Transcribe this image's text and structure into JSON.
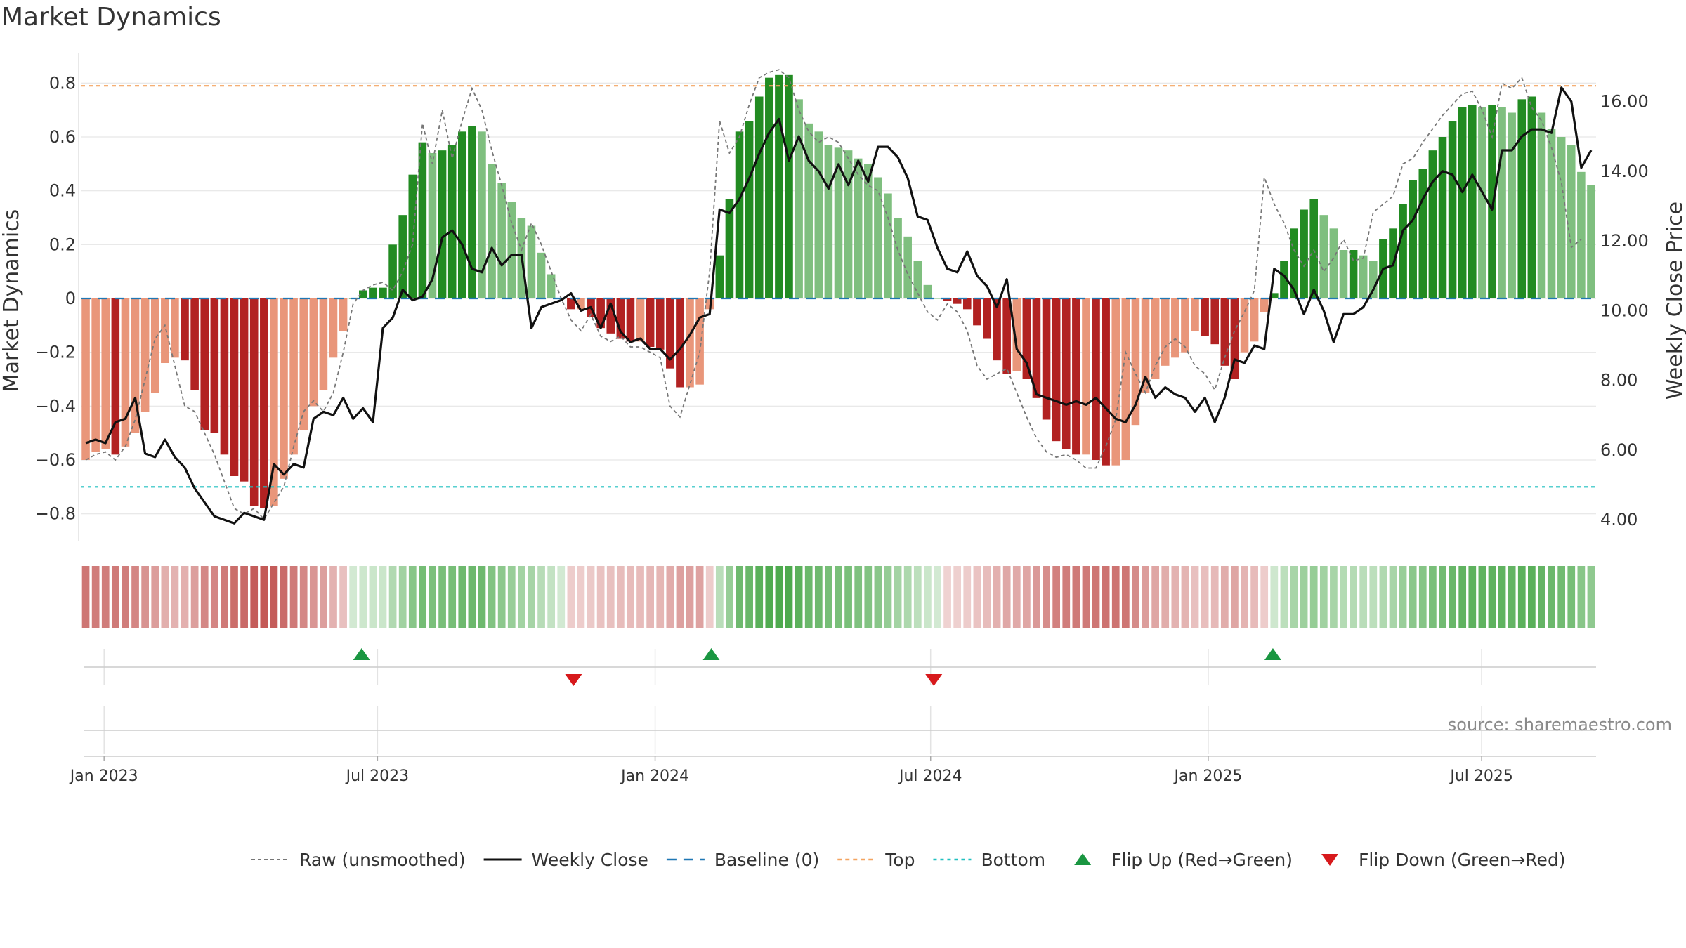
{
  "chart_data": {
    "type": "bar",
    "title": "Market Dynamics",
    "ylabel_left": "Market Dynamics",
    "ylabel_right": "Weekly Close Price",
    "source": "source: sharemaestro.com",
    "ylim_left": [
      -0.9,
      0.9
    ],
    "ylim_right": [
      3.4,
      17.3
    ],
    "yticks_left": [
      "−0.8",
      "−0.6",
      "−0.4",
      "−0.2",
      "0",
      "0.2",
      "0.4",
      "0.6",
      "0.8"
    ],
    "yticks_right": [
      "4.00",
      "6.00",
      "8.00",
      "10.00",
      "12.00",
      "14.00",
      "16.00"
    ],
    "x_ticks": [
      {
        "label": "Jan 2023",
        "week": 2.2
      },
      {
        "label": "Jul 2023",
        "week": 28.0
      },
      {
        "label": "Jan 2024",
        "week": 54.2
      },
      {
        "label": "Jul 2024",
        "week": 80.2
      },
      {
        "label": "Jan 2025",
        "week": 106.4
      },
      {
        "label": "Jul 2025",
        "week": 132.2
      }
    ],
    "x_range_weeks": [
      0,
      143
    ],
    "start_date": "2022-12-18",
    "top_level": 0.79,
    "bottom_level": -0.7,
    "baseline": 0,
    "grid": true,
    "legend_position": "bottom-center",
    "colors": {
      "strong_green": "#228b22",
      "light_green": "#7fbf7f",
      "strong_red": "#b22222",
      "light_red": "#e9967a",
      "weekly_close": "#111111",
      "raw": "#777777",
      "baseline": "#1f77b4",
      "top": "#f4a460",
      "bottom": "#20c0c0",
      "flip_up": "#1a9641",
      "flip_down": "#d7191c"
    },
    "series": [
      {
        "name": "Market Dynamics",
        "type": "bar",
        "values": [
          -0.6,
          -0.57,
          -0.56,
          -0.58,
          -0.55,
          -0.5,
          -0.42,
          -0.35,
          -0.24,
          -0.22,
          -0.23,
          -0.34,
          -0.49,
          -0.5,
          -0.58,
          -0.66,
          -0.68,
          -0.77,
          -0.78,
          -0.77,
          -0.67,
          -0.58,
          -0.49,
          -0.4,
          -0.34,
          -0.22,
          -0.12,
          0,
          0.03,
          0.04,
          0.04,
          0.2,
          0.31,
          0.46,
          0.58,
          0.54,
          0.55,
          0.57,
          0.62,
          0.64,
          0.62,
          0.5,
          0.43,
          0.36,
          0.3,
          0.27,
          0.17,
          0.09,
          0.0,
          -0.04,
          -0.04,
          -0.07,
          -0.11,
          -0.13,
          -0.15,
          -0.16,
          -0.16,
          -0.18,
          -0.19,
          -0.26,
          -0.33,
          -0.33,
          -0.32,
          -0.04,
          0.16,
          0.37,
          0.62,
          0.66,
          0.75,
          0.82,
          0.83,
          0.83,
          0.74,
          0.65,
          0.62,
          0.57,
          0.56,
          0.55,
          0.52,
          0.5,
          0.45,
          0.39,
          0.3,
          0.23,
          0.14,
          0.05,
          0.0,
          -0.01,
          -0.02,
          -0.04,
          -0.1,
          -0.15,
          -0.23,
          -0.28,
          -0.27,
          -0.3,
          -0.37,
          -0.45,
          -0.53,
          -0.56,
          -0.58,
          -0.58,
          -0.6,
          -0.62,
          -0.62,
          -0.6,
          -0.47,
          -0.35,
          -0.3,
          -0.25,
          -0.22,
          -0.2,
          -0.12,
          -0.14,
          -0.17,
          -0.25,
          -0.3,
          -0.2,
          -0.16,
          -0.05,
          0.02,
          0.14,
          0.26,
          0.33,
          0.37,
          0.31,
          0.26,
          0.18,
          0.18,
          0.16,
          0.14,
          0.22,
          0.26,
          0.35,
          0.44,
          0.48,
          0.55,
          0.6,
          0.66,
          0.71,
          0.72,
          0.71,
          0.72,
          0.71,
          0.69,
          0.74,
          0.75,
          0.69,
          0.63,
          0.6,
          0.57,
          0.47,
          0.42
        ]
      },
      {
        "name": "Raw (unsmoothed)",
        "type": "line",
        "values": [
          -0.6,
          -0.58,
          -0.57,
          -0.6,
          -0.55,
          -0.45,
          -0.3,
          -0.15,
          -0.1,
          -0.25,
          -0.4,
          -0.42,
          -0.5,
          -0.58,
          -0.68,
          -0.78,
          -0.8,
          -0.78,
          -0.82,
          -0.76,
          -0.7,
          -0.55,
          -0.42,
          -0.38,
          -0.42,
          -0.35,
          -0.2,
          -0.02,
          0.03,
          0.05,
          0.06,
          0.03,
          0.1,
          0.2,
          0.65,
          0.5,
          0.7,
          0.52,
          0.66,
          0.78,
          0.7,
          0.55,
          0.42,
          0.28,
          0.18,
          0.28,
          0.2,
          0.1,
          0.0,
          -0.08,
          -0.12,
          -0.06,
          -0.14,
          -0.16,
          -0.14,
          -0.18,
          -0.18,
          -0.2,
          -0.22,
          -0.4,
          -0.44,
          -0.32,
          -0.2,
          0.1,
          0.66,
          0.54,
          0.6,
          0.72,
          0.82,
          0.84,
          0.85,
          0.82,
          0.7,
          0.62,
          0.58,
          0.6,
          0.58,
          0.52,
          0.46,
          0.42,
          0.4,
          0.3,
          0.18,
          0.09,
          0.02,
          -0.05,
          -0.08,
          -0.02,
          -0.05,
          -0.12,
          -0.25,
          -0.3,
          -0.28,
          -0.26,
          -0.35,
          -0.44,
          -0.52,
          -0.57,
          -0.59,
          -0.58,
          -0.6,
          -0.63,
          -0.63,
          -0.55,
          -0.45,
          -0.2,
          -0.28,
          -0.35,
          -0.25,
          -0.18,
          -0.15,
          -0.18,
          -0.25,
          -0.28,
          -0.34,
          -0.22,
          -0.12,
          -0.05,
          0.03,
          0.45,
          0.35,
          0.28,
          0.18,
          0.12,
          0.18,
          0.1,
          0.15,
          0.22,
          0.14,
          0.15,
          0.32,
          0.35,
          0.38,
          0.5,
          0.52,
          0.58,
          0.63,
          0.68,
          0.72,
          0.76,
          0.77,
          0.7,
          0.6,
          0.8,
          0.78,
          0.82,
          0.71,
          0.66,
          0.56,
          0.43,
          0.19,
          0.22
        ]
      },
      {
        "name": "Weekly Close",
        "type": "line",
        "axis": "right",
        "values": [
          6.2,
          6.3,
          6.2,
          6.8,
          6.9,
          7.5,
          5.9,
          5.8,
          6.3,
          5.8,
          5.5,
          4.9,
          4.5,
          4.1,
          4.0,
          3.9,
          4.2,
          4.1,
          4.0,
          5.6,
          5.3,
          5.6,
          5.5,
          6.9,
          7.1,
          7.0,
          7.5,
          6.9,
          7.2,
          6.8,
          9.5,
          9.8,
          10.6,
          10.3,
          10.4,
          10.9,
          12.1,
          12.3,
          11.9,
          11.2,
          11.1,
          11.8,
          11.3,
          11.6,
          11.6,
          9.5,
          10.1,
          10.2,
          10.3,
          10.5,
          10.0,
          10.1,
          9.5,
          10.2,
          9.4,
          9.1,
          9.2,
          8.9,
          8.9,
          8.6,
          8.9,
          9.3,
          9.8,
          9.9,
          12.9,
          12.8,
          13.2,
          13.8,
          14.5,
          15.1,
          15.5,
          14.3,
          15.0,
          14.3,
          14.0,
          13.5,
          14.2,
          13.6,
          14.3,
          13.7,
          14.7,
          14.7,
          14.4,
          13.8,
          12.7,
          12.6,
          11.8,
          11.2,
          11.1,
          11.7,
          11.0,
          10.7,
          10.1,
          10.9,
          8.9,
          8.5,
          7.6,
          7.5,
          7.4,
          7.3,
          7.4,
          7.3,
          7.5,
          7.2,
          6.9,
          6.8,
          7.3,
          8.1,
          7.5,
          7.8,
          7.6,
          7.5,
          7.1,
          7.5,
          6.8,
          7.5,
          8.6,
          8.5,
          9.0,
          8.9,
          11.2,
          11.0,
          10.6,
          9.9,
          10.6,
          10.0,
          9.1,
          9.9,
          9.9,
          10.1,
          10.6,
          11.2,
          11.3,
          12.3,
          12.6,
          13.2,
          13.7,
          14.0,
          13.9,
          13.4,
          13.9,
          13.4,
          12.9,
          14.6,
          14.6,
          15.0,
          15.2,
          15.2,
          15.1,
          16.4,
          16.0,
          14.1,
          14.6
        ]
      },
      {
        "name": "Baseline (0)",
        "type": "hline",
        "value": 0
      },
      {
        "name": "Top",
        "type": "hline",
        "value": 0.79
      },
      {
        "name": "Bottom",
        "type": "hline",
        "value": -0.7
      },
      {
        "name": "Flip Up (Red→Green)",
        "type": "marker",
        "weeks": [
          26.5,
          59.5,
          112.5
        ]
      },
      {
        "name": "Flip Down (Green→Red)",
        "type": "marker",
        "weeks": [
          46.5,
          80.5
        ]
      }
    ],
    "legend": [
      {
        "label": "Raw (unsmoothed)",
        "style": "dashed-gray"
      },
      {
        "label": "Weekly Close",
        "style": "solid-black"
      },
      {
        "label": "Baseline (0)",
        "style": "dashed-blue"
      },
      {
        "label": "Top",
        "style": "dashed-orange"
      },
      {
        "label": "Bottom",
        "style": "dashed-teal"
      },
      {
        "label": "Flip Up (Red→Green)",
        "style": "triangle-up-green"
      },
      {
        "label": "Flip Down (Green→Red)",
        "style": "triangle-down-red"
      }
    ]
  }
}
